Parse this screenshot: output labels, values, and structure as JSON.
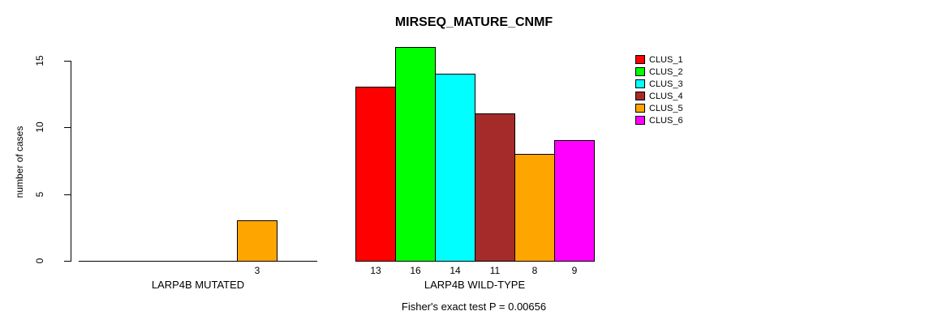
{
  "figure": {
    "title": "MIRSEQ_MATURE_CNMF",
    "ylabel": "number of cases",
    "annotation": "Fisher's exact test P = 0.00656"
  },
  "chart_data": {
    "type": "bar",
    "title": "MIRSEQ_MATURE_CNMF",
    "xlabel": "",
    "ylabel": "number of cases",
    "ylim": [
      0,
      16
    ],
    "yticks": [
      0,
      5,
      10,
      15
    ],
    "grid": false,
    "legend_position": "right",
    "categories": [
      "LARP4B MUTATED",
      "LARP4B WILD-TYPE"
    ],
    "series": [
      {
        "name": "CLUS_1",
        "color": "#FF0000",
        "values": [
          0,
          13
        ]
      },
      {
        "name": "CLUS_2",
        "color": "#00FF00",
        "values": [
          0,
          16
        ]
      },
      {
        "name": "CLUS_3",
        "color": "#00FFFF",
        "values": [
          0,
          14
        ]
      },
      {
        "name": "CLUS_4",
        "color": "#A52A2A",
        "values": [
          0,
          11
        ]
      },
      {
        "name": "CLUS_5",
        "color": "#FFA500",
        "values": [
          3,
          8
        ]
      },
      {
        "name": "CLUS_6",
        "color": "#FF00FF",
        "values": [
          0,
          9
        ]
      }
    ],
    "bar_value_labels": {
      "LARP4B MUTATED": [
        3
      ],
      "LARP4B WILD-TYPE": [
        13,
        16,
        14,
        11,
        8,
        9
      ]
    },
    "annotation": "Fisher's exact test P = 0.00656",
    "text_color": "#000000",
    "background_color": "#FFFFFF"
  }
}
